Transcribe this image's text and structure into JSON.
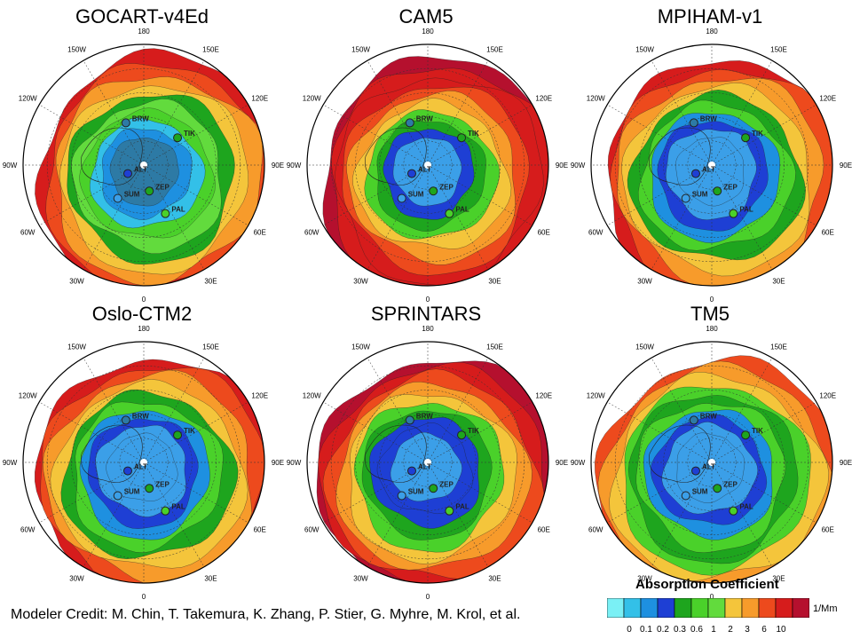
{
  "panels": [
    {
      "title": "GOCART-v4Ed",
      "palette": [
        "#2d7aa5",
        "#1e90e0",
        "#33c0e8",
        "#4ad12a",
        "#62db3d",
        "#1ea51e",
        "#f4c53b",
        "#f79b2b",
        "#ed4a1d",
        "#d61c1c"
      ]
    },
    {
      "title": "CAM5",
      "palette": [
        "#3b9fe8",
        "#1e3fd4",
        "#1ea51e",
        "#4ad12a",
        "#f4c53b",
        "#f79b2b",
        "#ed4a1d",
        "#d61c1c",
        "#d61c1c",
        "#b5102e"
      ]
    },
    {
      "title": "MPIHAM-v1",
      "palette": [
        "#3b9fe8",
        "#3b9fe8",
        "#1e3fd4",
        "#1e90e0",
        "#4ad12a",
        "#1ea51e",
        "#f4c53b",
        "#f79b2b",
        "#ed4a1d",
        "#d61c1c"
      ]
    },
    {
      "title": "Oslo-CTM2",
      "palette": [
        "#3b9fe8",
        "#3b9fe8",
        "#1e3fd4",
        "#1e90e0",
        "#4ad12a",
        "#1ea51e",
        "#f4c53b",
        "#f79b2b",
        "#ed4a1d",
        "#d61c1c"
      ]
    },
    {
      "title": "SPRINTARS",
      "palette": [
        "#3b9fe8",
        "#1e3fd4",
        "#1e3fd4",
        "#1ea51e",
        "#4ad12a",
        "#f4c53b",
        "#f79b2b",
        "#ed4a1d",
        "#d61c1c",
        "#b5102e"
      ]
    },
    {
      "title": "TM5",
      "palette": [
        "#3b9fe8",
        "#3b9fe8",
        "#1e3fd4",
        "#1e90e0",
        "#4ad12a",
        "#1ea51e",
        "#4ad12a",
        "#f4c53b",
        "#f79b2b",
        "#ed4a1d"
      ]
    }
  ],
  "longitude_labels": [
    "180",
    "150E",
    "120E",
    "90E",
    "60E",
    "30E",
    "0",
    "30W",
    "60W",
    "90W",
    "120W",
    "150W"
  ],
  "stations": [
    {
      "name": "BRW",
      "lon": -157,
      "lat": 71,
      "color": "#2d7aa5"
    },
    {
      "name": "TIK",
      "lon": 129,
      "lat": 72,
      "color": "#1ea51e"
    },
    {
      "name": "ALT",
      "lon": -62,
      "lat": 82.5,
      "color": "#1e3fd4"
    },
    {
      "name": "ZEP",
      "lon": 12,
      "lat": 79,
      "color": "#1ea51e"
    },
    {
      "name": "SUM",
      "lon": -38,
      "lat": 72.5,
      "color": "#3b9fe8"
    },
    {
      "name": "PAL",
      "lon": 24,
      "lat": 68,
      "color": "#4ad12a"
    }
  ],
  "credit": "Modeler Credit: M. Chin, T. Takemura, K. Zhang, P. Stier, G. Myhre, M. Krol, et al.",
  "colorbar": {
    "title": "Absorption Coefficient",
    "unit": "1/Mm",
    "colors": [
      "#7af0f5",
      "#33c0e8",
      "#1e90e0",
      "#1e3fd4",
      "#1ea51e",
      "#4ad12a",
      "#62db3d",
      "#f4c53b",
      "#f79b2b",
      "#ed4a1d",
      "#d61c1c",
      "#b5102e"
    ],
    "ticks": [
      "0",
      "0.1",
      "0.2",
      "0.3",
      "0.6",
      "1",
      "2",
      "3",
      "6",
      "10"
    ]
  }
}
